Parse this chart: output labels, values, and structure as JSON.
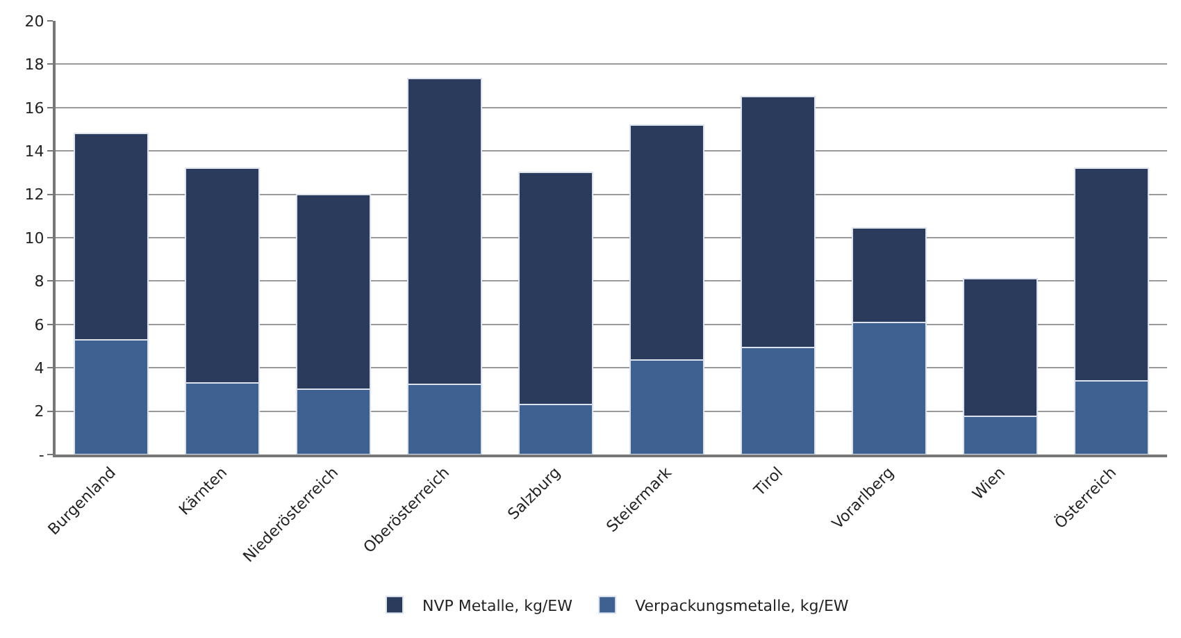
{
  "chart_data": {
    "type": "bar",
    "stacked": true,
    "categories": [
      "Burgenland",
      "Kärnten",
      "Niederösterreich",
      "Oberösterreich",
      "Salzburg",
      "Steiermark",
      "Tirol",
      "Vorarlberg",
      "Wien",
      "Österreich"
    ],
    "series": [
      {
        "name": "Verpackungsmetalle, kg/EW",
        "color": "#3e6192",
        "values": [
          5.3,
          3.3,
          3.0,
          3.25,
          2.3,
          4.35,
          4.95,
          6.1,
          1.75,
          3.4
        ]
      },
      {
        "name": "NVP Metalle, kg/EW",
        "color": "#2a3b5c",
        "values": [
          9.5,
          9.9,
          9.0,
          14.1,
          10.7,
          10.85,
          11.55,
          4.35,
          6.35,
          9.8
        ]
      }
    ],
    "ylim": [
      0,
      20
    ],
    "yticks": [
      {
        "value": 0,
        "label": "-"
      },
      2,
      4,
      6,
      8,
      10,
      12,
      14,
      16,
      18,
      20
    ],
    "grid": "y",
    "legend": "bottom"
  }
}
